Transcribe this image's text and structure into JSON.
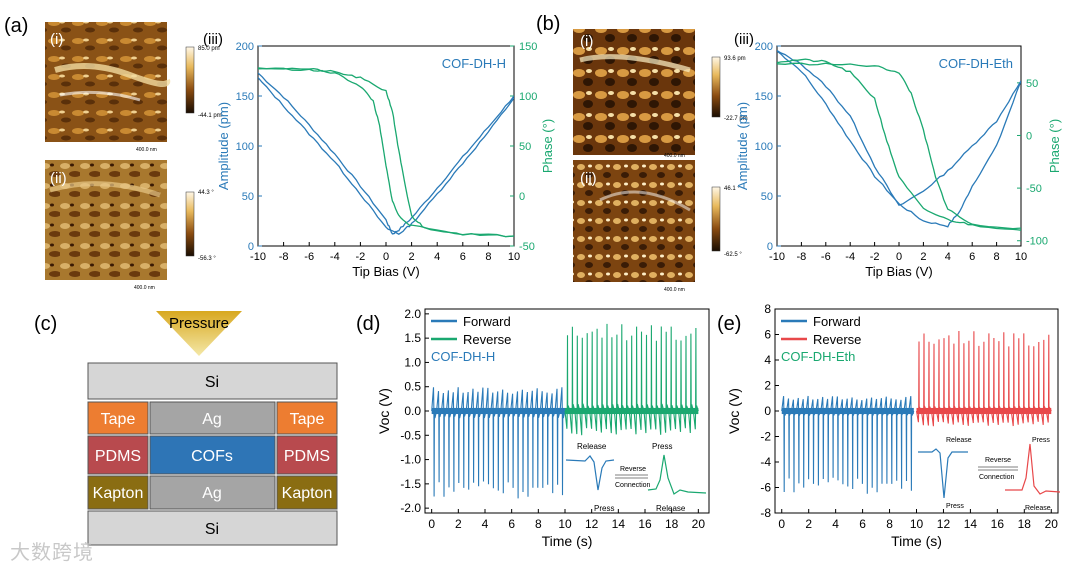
{
  "panels": {
    "a": {
      "label": "(a)",
      "sub": [
        "(i)",
        "(ii)",
        "(iii)"
      ],
      "scale_i": {
        "top": "85.0 pm",
        "bottom": "-44.1 pm"
      },
      "scale_ii": {
        "top": "44.3 °",
        "bottom": "-56.3 °"
      },
      "scalebar": "400.0 nm"
    },
    "b": {
      "label": "(b)",
      "sub": [
        "(i)",
        "(ii)",
        "(iii)"
      ],
      "scale_i": {
        "top": "93.6 pm",
        "bottom": "-22.7 pm"
      },
      "scale_ii": {
        "top": "46.1 °",
        "bottom": "-62.5 °"
      },
      "scalebar": "400.0 nm"
    },
    "c": {
      "label": "(c)",
      "pressure": "Pressure",
      "layers": {
        "si": "Si",
        "ag": "Ag",
        "cofs": "COFs",
        "tape": "Tape",
        "pdms": "PDMS",
        "kapton": "Kapton"
      }
    },
    "d": {
      "label": "(d)",
      "inset": {
        "release": "Release",
        "press": "Press",
        "reverse": "Reverse",
        "connection": "Connection"
      }
    },
    "e": {
      "label": "(e)",
      "inset": {
        "release": "Release",
        "press": "Press",
        "reverse": "Reverse",
        "connection": "Connection"
      }
    }
  },
  "colors": {
    "blue": "#2a7ab8",
    "green": "#1aa870",
    "red": "#e8484a"
  },
  "watermark": "大数跨境",
  "chart_data": [
    {
      "type": "line",
      "panel": "a(iii)",
      "annotation": "COF-DH-H",
      "xlabel": "Tip Bias (V)",
      "ylabel": "Amplitude (pm)",
      "y2label": "Phase (°)",
      "xlim": [
        -10,
        10
      ],
      "ylim": [
        0,
        200
      ],
      "y2lim": [
        -50,
        150
      ],
      "xticks": [
        "-10",
        "-8",
        "-6",
        "-4",
        "-2",
        "0",
        "2",
        "4",
        "6",
        "8",
        "10"
      ],
      "yticks": [
        "0",
        "50",
        "100",
        "150",
        "200"
      ],
      "y2ticks": [
        "-50",
        "0",
        "50",
        "100",
        "150"
      ],
      "amplitude_fwd": [
        [
          -10,
          173
        ],
        [
          -8,
          149
        ],
        [
          -6,
          121
        ],
        [
          -4,
          92
        ],
        [
          -2,
          60
        ],
        [
          0,
          26
        ],
        [
          0.5,
          12
        ],
        [
          1,
          16
        ],
        [
          2,
          28
        ],
        [
          4,
          58
        ],
        [
          6,
          89
        ],
        [
          8,
          119
        ],
        [
          10,
          150
        ]
      ],
      "amplitude_rev": [
        [
          -10,
          168
        ],
        [
          -8,
          140
        ],
        [
          -6,
          112
        ],
        [
          -4,
          84
        ],
        [
          -2,
          52
        ],
        [
          0,
          18
        ],
        [
          1,
          12
        ],
        [
          2,
          22
        ],
        [
          4,
          52
        ],
        [
          6,
          83
        ],
        [
          8,
          114
        ],
        [
          10,
          148
        ]
      ],
      "phase_fwd": [
        [
          -10,
          128
        ],
        [
          -6,
          127
        ],
        [
          -4,
          124
        ],
        [
          -2,
          118
        ],
        [
          0,
          105
        ],
        [
          0.5,
          85
        ],
        [
          1,
          45
        ],
        [
          1.5,
          10
        ],
        [
          2,
          -20
        ],
        [
          3,
          -32
        ],
        [
          6,
          -38
        ],
        [
          10,
          -40
        ]
      ],
      "phase_rev": [
        [
          -10,
          128
        ],
        [
          -6,
          126
        ],
        [
          -4,
          123
        ],
        [
          -2,
          110
        ],
        [
          -1,
          95
        ],
        [
          -0.5,
          70
        ],
        [
          0,
          30
        ],
        [
          0.5,
          -5
        ],
        [
          1,
          -20
        ],
        [
          2,
          -30
        ],
        [
          6,
          -38
        ],
        [
          10,
          -40
        ]
      ]
    },
    {
      "type": "line",
      "panel": "b(iii)",
      "annotation": "COF-DH-Eth",
      "xlabel": "Tip Bias (V)",
      "ylabel": "Amplitude (pm)",
      "y2label": "Phase (°)",
      "xlim": [
        -10,
        10
      ],
      "ylim": [
        0,
        200
      ],
      "y2lim": [
        -105,
        85
      ],
      "xticks": [
        "-10",
        "-8",
        "-6",
        "-4",
        "-2",
        "0",
        "2",
        "4",
        "6",
        "8",
        "10"
      ],
      "yticks": [
        "0",
        "50",
        "100",
        "150",
        "200"
      ],
      "y2ticks": [
        "-100",
        "-50",
        "0",
        "50"
      ],
      "amplitude_fwd": [
        [
          -10,
          195
        ],
        [
          -8,
          175
        ],
        [
          -6,
          142
        ],
        [
          -4,
          105
        ],
        [
          -2,
          70
        ],
        [
          0,
          42
        ],
        [
          2,
          25
        ],
        [
          4,
          20
        ],
        [
          5,
          35
        ],
        [
          6,
          60
        ],
        [
          8,
          100
        ],
        [
          10,
          165
        ]
      ],
      "amplitude_rev": [
        [
          -10,
          195
        ],
        [
          -8,
          182
        ],
        [
          -6,
          160
        ],
        [
          -4,
          130
        ],
        [
          -2,
          80
        ],
        [
          0,
          40
        ],
        [
          2,
          55
        ],
        [
          4,
          75
        ],
        [
          6,
          100
        ],
        [
          8,
          125
        ],
        [
          10,
          165
        ]
      ],
      "phase_fwd": [
        [
          -10,
          70
        ],
        [
          -8,
          72
        ],
        [
          -6,
          70
        ],
        [
          -4,
          60
        ],
        [
          -2,
          35
        ],
        [
          -1,
          -5
        ],
        [
          0,
          -40
        ],
        [
          2,
          -70
        ],
        [
          4,
          -80
        ],
        [
          6,
          -85
        ],
        [
          10,
          -90
        ]
      ],
      "phase_rev": [
        [
          -10,
          68
        ],
        [
          -6,
          68
        ],
        [
          -2,
          66
        ],
        [
          0,
          60
        ],
        [
          1,
          40
        ],
        [
          2,
          5
        ],
        [
          3,
          -40
        ],
        [
          4,
          -70
        ],
        [
          6,
          -85
        ],
        [
          10,
          -88
        ]
      ]
    },
    {
      "type": "line",
      "panel": "d",
      "annotation": "COF-DH-H",
      "legend": [
        "Forward",
        "Reverse"
      ],
      "xlabel": "Time (s)",
      "ylabel": "Voc (V)",
      "xlim": [
        -0.5,
        20.8
      ],
      "ylim": [
        -2.1,
        2.1
      ],
      "xticks": [
        "0",
        "2",
        "4",
        "6",
        "8",
        "10",
        "12",
        "14",
        "16",
        "18",
        "20"
      ],
      "yticks": [
        "-2.0",
        "-1.5",
        "-1.0",
        "-0.5",
        "0.0",
        "0.5",
        "1.0",
        "1.5",
        "2.0"
      ],
      "series": [
        {
          "name": "Forward",
          "x_range": [
            0,
            10
          ],
          "pulses": 27,
          "baseline": 0.0,
          "press_min": -1.8,
          "release_max": 0.5
        },
        {
          "name": "Reverse",
          "x_range": [
            10,
            20
          ],
          "pulses": 27,
          "baseline": 0.0,
          "press_max": 1.8,
          "release_min": -0.5
        }
      ]
    },
    {
      "type": "line",
      "panel": "e",
      "annotation": "COF-DH-Eth",
      "legend": [
        "Forward",
        "Reverse"
      ],
      "xlabel": "Time (s)",
      "ylabel": "Voc (V)",
      "xlim": [
        -0.5,
        20.5
      ],
      "ylim": [
        -8,
        8
      ],
      "xticks": [
        "0",
        "2",
        "4",
        "6",
        "8",
        "10",
        "12",
        "14",
        "16",
        "18",
        "20"
      ],
      "yticks": [
        "-8",
        "-6",
        "-4",
        "-2",
        "0",
        "2",
        "4",
        "6",
        "8"
      ],
      "series": [
        {
          "name": "Forward",
          "x_range": [
            0,
            9.8
          ],
          "pulses": 27,
          "baseline": 0.0,
          "press_min": -6.5,
          "release_max": 1.2
        },
        {
          "name": "Reverse",
          "x_range": [
            10,
            20
          ],
          "pulses": 27,
          "baseline": 0.0,
          "press_max": 6.3,
          "release_min": -1.2
        }
      ]
    }
  ]
}
